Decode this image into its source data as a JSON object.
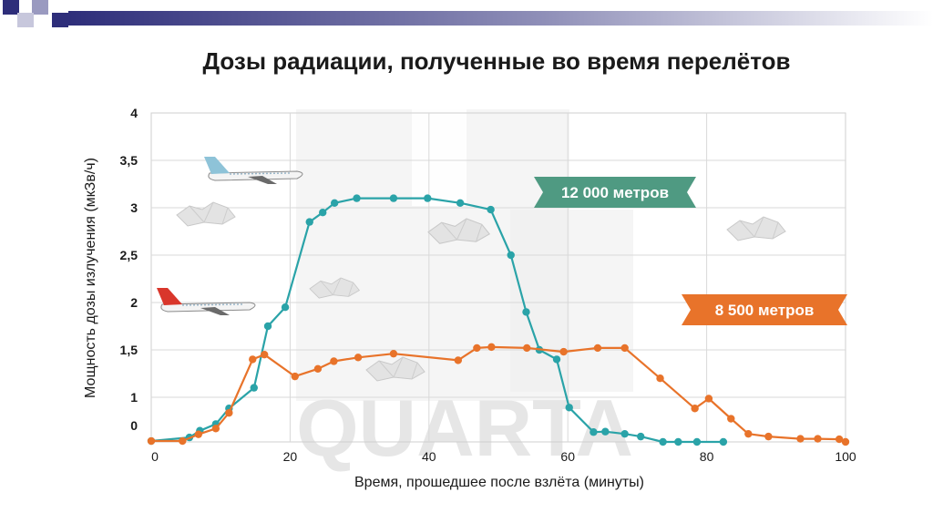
{
  "chart_data": {
    "type": "line",
    "title": "Дозы радиации, полученные во время перелётов",
    "xlabel": "Время, прошедшее после взлёта (минуты)",
    "ylabel": "Мощность дозы излучения (мкЗв/ч)",
    "xlim": [
      0,
      100
    ],
    "ylim": [
      0,
      4
    ],
    "x_ticks": [
      0,
      20,
      40,
      60,
      80,
      100
    ],
    "x_tick_labels": [
      "0",
      "20",
      "40",
      "60",
      "80",
      "100"
    ],
    "y_ticks": [
      0,
      1,
      1.5,
      2,
      2.5,
      3,
      3.5,
      4
    ],
    "y_tick_labels": [
      "0",
      "1",
      "1,5",
      "2",
      "2,5",
      "3",
      "3,5",
      "4"
    ],
    "grid": true,
    "watermark": "QUARTA",
    "series": [
      {
        "name": "12 000 метров",
        "color": "#2aa3a8",
        "label_color": "#4f9a82",
        "points": [
          [
            0,
            0.02
          ],
          [
            5.5,
            0.1
          ],
          [
            7,
            0.25
          ],
          [
            9.3,
            0.4
          ],
          [
            11.2,
            0.75
          ],
          [
            14.8,
            1.1
          ],
          [
            16.8,
            1.75
          ],
          [
            19.3,
            1.95
          ],
          [
            22.8,
            2.85
          ],
          [
            24.7,
            2.95
          ],
          [
            26.4,
            3.05
          ],
          [
            29.6,
            3.1
          ],
          [
            34.9,
            3.1
          ],
          [
            39.8,
            3.1
          ],
          [
            44.5,
            3.05
          ],
          [
            48.9,
            2.98
          ],
          [
            51.8,
            2.5
          ],
          [
            54,
            1.9
          ],
          [
            55.9,
            1.5
          ],
          [
            58.4,
            1.4
          ],
          [
            60.2,
            0.77
          ],
          [
            63.7,
            0.22
          ],
          [
            65.4,
            0.23
          ],
          [
            68.2,
            0.18
          ],
          [
            70.5,
            0.12
          ],
          [
            73.7,
            0.0
          ],
          [
            75.9,
            0.0
          ],
          [
            78.6,
            0.0
          ],
          [
            82.4,
            0.0
          ]
        ]
      },
      {
        "name": "8 500 метров",
        "color": "#e8732a",
        "label_color": "#e8732a",
        "points": [
          [
            0,
            0.02
          ],
          [
            4.5,
            0.02
          ],
          [
            6.8,
            0.17
          ],
          [
            9.3,
            0.3
          ],
          [
            11.2,
            0.65
          ],
          [
            14.6,
            1.4
          ],
          [
            16.3,
            1.45
          ],
          [
            20.7,
            1.22
          ],
          [
            24,
            1.3
          ],
          [
            26.3,
            1.38
          ],
          [
            29.8,
            1.42
          ],
          [
            34.9,
            1.46
          ],
          [
            44.2,
            1.39
          ],
          [
            46.9,
            1.52
          ],
          [
            49,
            1.53
          ],
          [
            54.1,
            1.52
          ],
          [
            59.4,
            1.48
          ],
          [
            64.3,
            1.52
          ],
          [
            68.2,
            1.52
          ],
          [
            73.3,
            1.2
          ],
          [
            78.3,
            0.75
          ],
          [
            80.3,
            0.97
          ],
          [
            83.5,
            0.52
          ],
          [
            86,
            0.18
          ],
          [
            88.9,
            0.12
          ],
          [
            93.5,
            0.07
          ],
          [
            96,
            0.07
          ],
          [
            99.1,
            0.06
          ],
          [
            100,
            0.0
          ]
        ]
      }
    ]
  }
}
